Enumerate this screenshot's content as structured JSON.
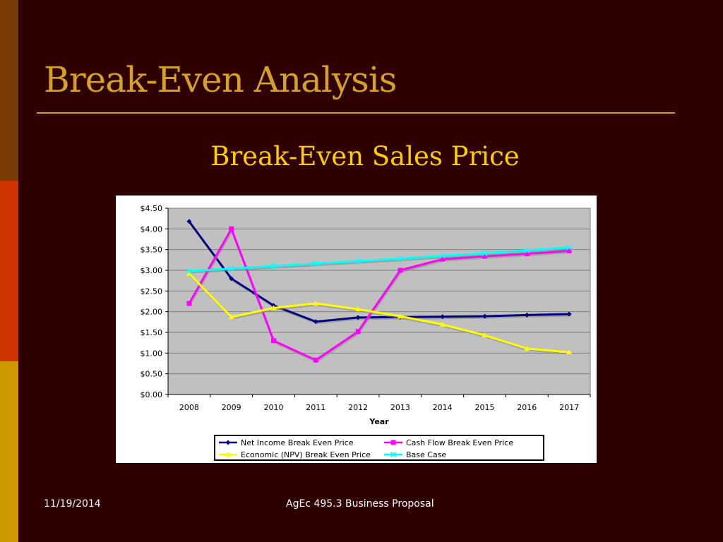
{
  "slide": {
    "title": "Break-Even Analysis",
    "footer_date": "11/19/2014",
    "footer_text": "AgEc 495.3 Business Proposal"
  },
  "colors": {
    "background": "#2e0000",
    "title": "#d4a026",
    "chart_title": "#ffcc00",
    "plot_area": "#c0c0c0"
  },
  "chart_data": {
    "type": "line",
    "title": "Break-Even Sales Price",
    "xlabel": "Year",
    "ylabel": "",
    "categories": [
      "2008",
      "2009",
      "2010",
      "2011",
      "2012",
      "2013",
      "2014",
      "2015",
      "2016",
      "2017"
    ],
    "ylim": [
      0,
      4.5
    ],
    "yticks": [
      "$0.00",
      "$0.50",
      "$1.00",
      "$1.50",
      "$2.00",
      "$2.50",
      "$3.00",
      "$3.50",
      "$4.00",
      "$4.50"
    ],
    "grid": true,
    "legend_position": "bottom",
    "series": [
      {
        "name": "Net Income Break Even Price",
        "color": "#000080",
        "marker": "diamond",
        "values": [
          4.18,
          2.8,
          2.15,
          1.76,
          1.86,
          1.87,
          1.88,
          1.89,
          1.92,
          1.94
        ]
      },
      {
        "name": "Cash Flow Break Even Price",
        "color": "#ff00ff",
        "marker": "square",
        "values": [
          2.2,
          4.0,
          1.3,
          0.83,
          1.52,
          3.0,
          3.27,
          3.34,
          3.4,
          3.47
        ]
      },
      {
        "name": "Economic (NPV) Break Even Price",
        "color": "#ffff00",
        "marker": "triangle",
        "values": [
          2.92,
          1.87,
          2.09,
          2.2,
          2.06,
          1.89,
          1.69,
          1.43,
          1.11,
          1.02
        ]
      },
      {
        "name": "Base Case",
        "color": "#00ffff",
        "marker": "x",
        "values": [
          2.98,
          3.04,
          3.1,
          3.16,
          3.22,
          3.28,
          3.35,
          3.41,
          3.48,
          3.55
        ]
      }
    ]
  }
}
